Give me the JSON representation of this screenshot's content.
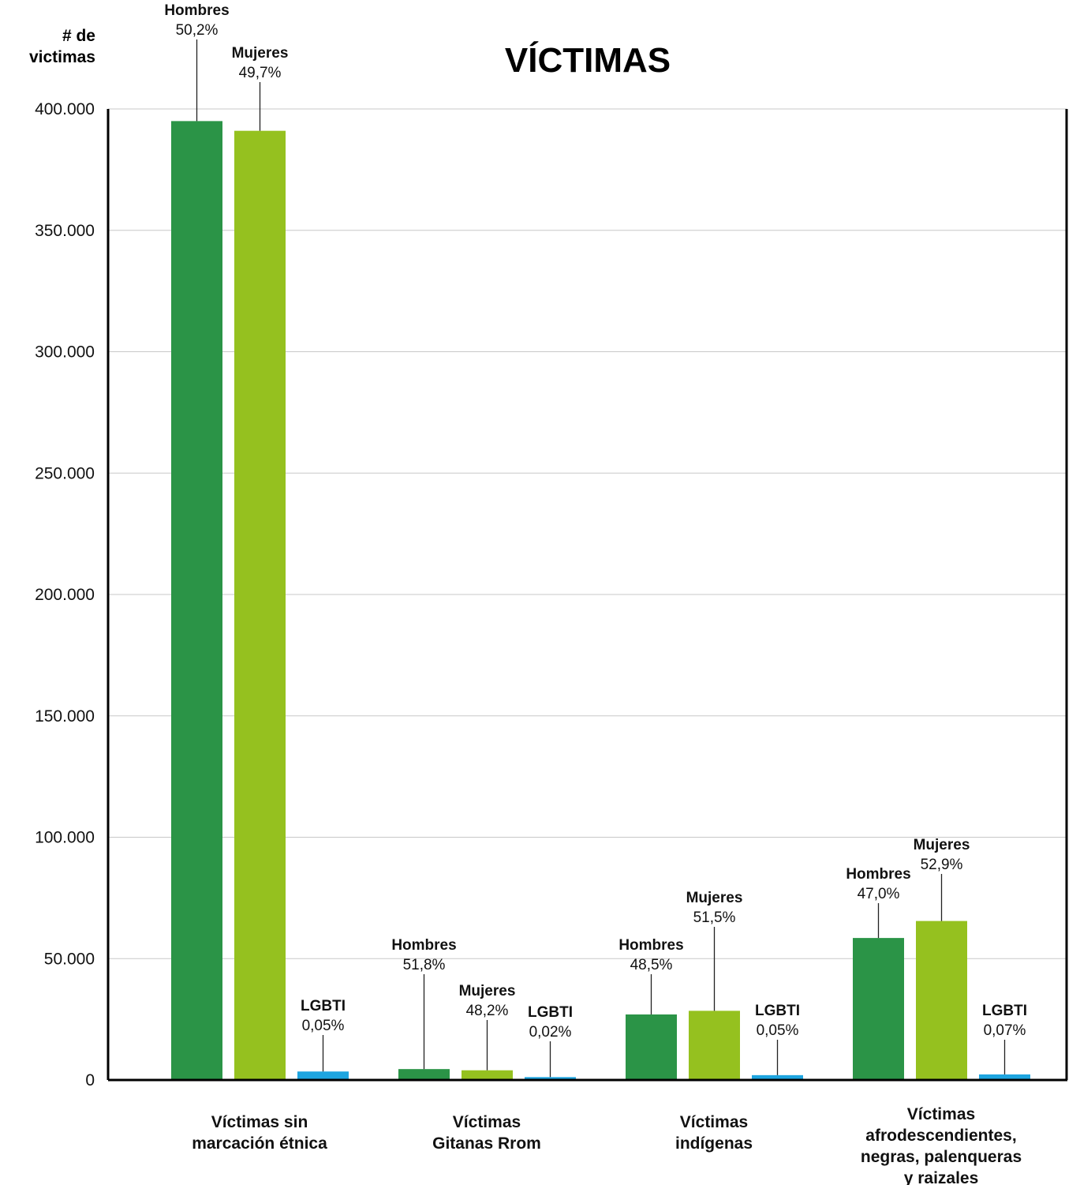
{
  "chart_data": {
    "type": "bar",
    "title": "VÍCTIMAS",
    "ylabel": [
      "# de",
      "victimas"
    ],
    "ylim": [
      0,
      400000
    ],
    "yticks": [
      0,
      50000,
      100000,
      150000,
      200000,
      250000,
      300000,
      350000,
      400000
    ],
    "ytick_labels": [
      "0",
      "50.000",
      "100.000",
      "150.000",
      "200.000",
      "250.000",
      "300.000",
      "350.000",
      "400.000"
    ],
    "grid": true,
    "categories": [
      [
        "Víctimas sin",
        "marcación étnica"
      ],
      [
        "Víctimas",
        "Gitanas Rrom"
      ],
      [
        "Víctimas",
        "indígenas"
      ],
      [
        "Víctimas",
        "afrodescendientes,",
        "negras, palenqueras",
        "y raizales"
      ]
    ],
    "series": [
      {
        "name": "Hombres",
        "color": "#2b9447",
        "values": [
          395000,
          4500,
          27000,
          58500
        ],
        "labels": [
          "50,2%",
          "51,8%",
          "48,5%",
          "47,0%"
        ]
      },
      {
        "name": "Mujeres",
        "color": "#95c11f",
        "values": [
          391000,
          4000,
          28500,
          65500
        ],
        "labels": [
          "49,7%",
          "48,2%",
          "51,5%",
          "52,9%"
        ]
      },
      {
        "name": "LGBTI",
        "color": "#1ea5e0",
        "values": [
          3500,
          1200,
          2000,
          2300
        ],
        "labels": [
          "0,05%",
          "0,02%",
          "0,05%",
          "0,07%"
        ]
      }
    ]
  }
}
